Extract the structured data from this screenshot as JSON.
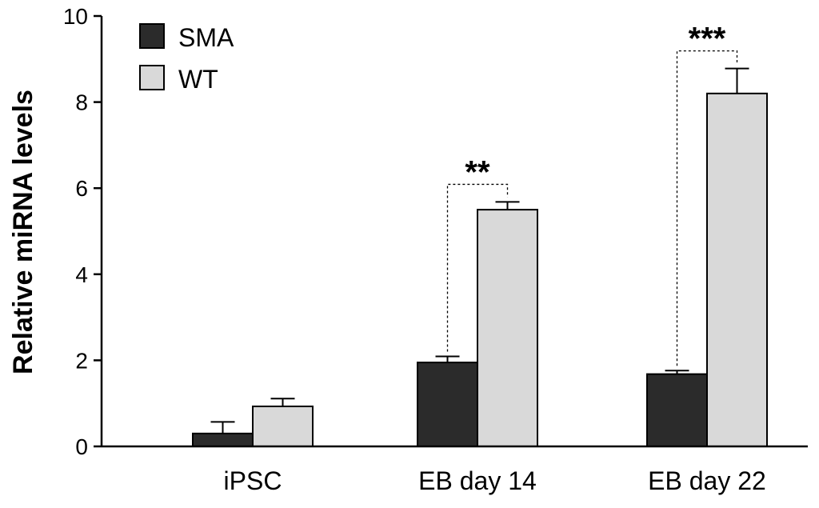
{
  "chart_data": {
    "type": "bar",
    "title": "",
    "xlabel": "",
    "ylabel": "Relative miRNA levels",
    "ylim": [
      0,
      10
    ],
    "yticks": [
      0,
      2,
      4,
      6,
      8,
      10
    ],
    "categories": [
      "iPSC",
      "EB day 14",
      "EB day 22"
    ],
    "series": [
      {
        "name": "SMA",
        "values": [
          0.3,
          1.95,
          1.68
        ],
        "errors": [
          0.27,
          0.14,
          0.08
        ],
        "color": "#2b2b2b"
      },
      {
        "name": "WT",
        "values": [
          0.93,
          5.5,
          8.2
        ],
        "errors": [
          0.18,
          0.18,
          0.58
        ],
        "color": "#d9d9d9"
      }
    ],
    "significance": [
      {
        "category": "EB day 14",
        "label": "**"
      },
      {
        "category": "EB day 22",
        "label": "***"
      }
    ],
    "legend": {
      "position": "top-left"
    },
    "grid": false
  }
}
